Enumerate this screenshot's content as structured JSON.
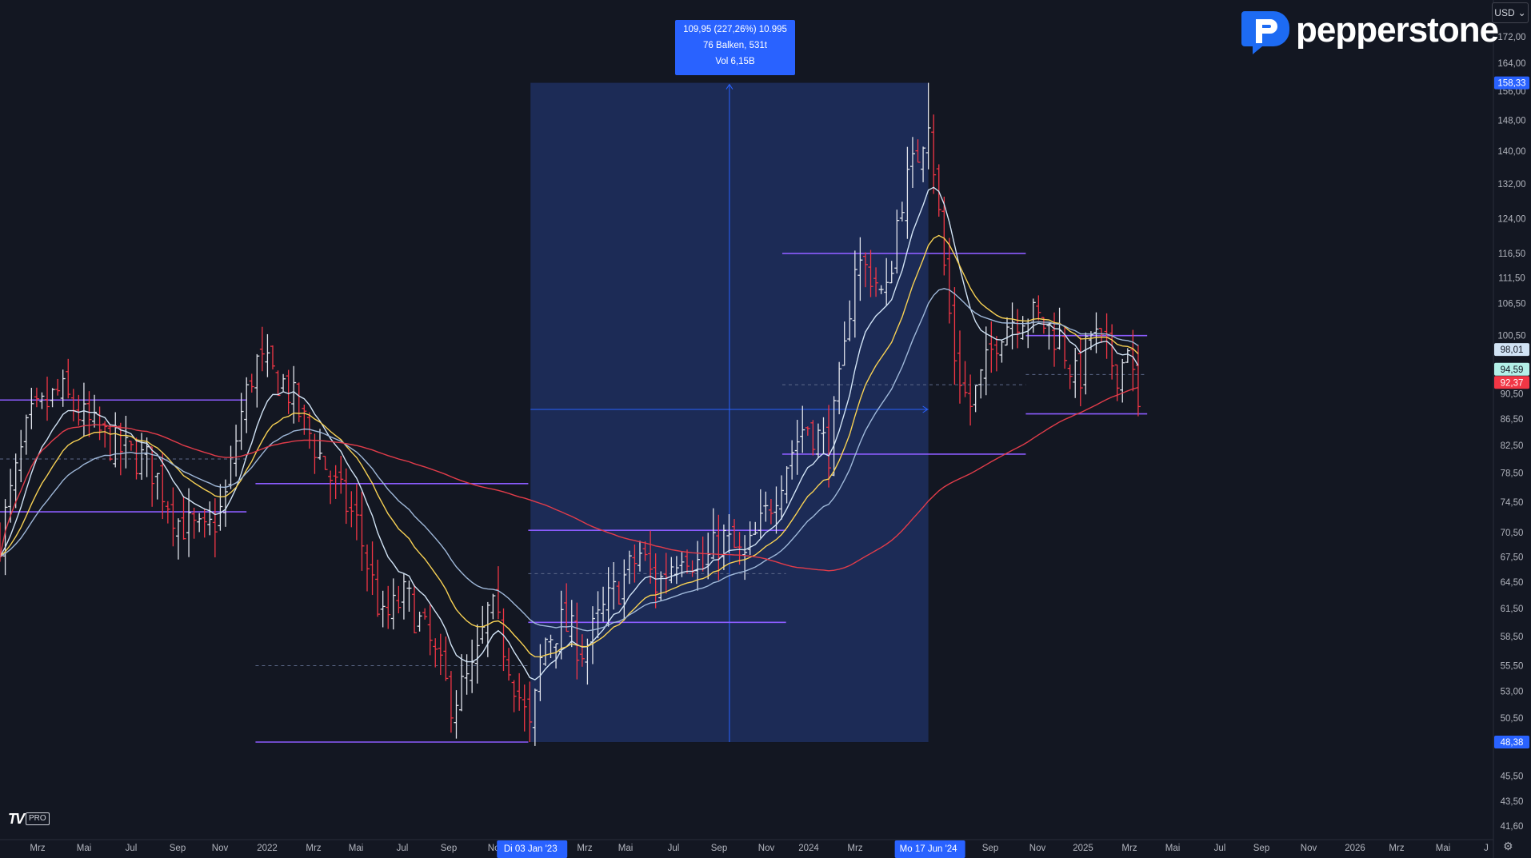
{
  "app": {
    "brand": "pepperstone",
    "currency": "USD",
    "badge_main": "TV",
    "badge_sub": "PRO"
  },
  "measure_tool": {
    "line1": "109,95 (227,26%) 10.995",
    "line2": "76 Balken, 531t",
    "line3": "Vol 6,15B",
    "start_label": "Di 03 Jan '23",
    "end_label": "Mo 17 Jun '24",
    "low": 48.38,
    "high": 158.33
  },
  "colors": {
    "background": "#131722",
    "bull": "#e0e3eb",
    "bear": "#f23645",
    "ema_fast": "#d1e3f5",
    "ema_mid": "#f7d154",
    "ema_slow_blue": "#9fb8d9",
    "sma_red": "#e23c4a",
    "level_lines": "#8c5cff",
    "measure_fill": "#1e2d5c",
    "accent": "#2962ff"
  },
  "chart_data": {
    "type": "candlestick",
    "symbol_currency": "USD",
    "y_axis": {
      "scale": "log",
      "ticks": [
        "172,00",
        "164,00",
        "156,00",
        "148,00",
        "140,00",
        "132,00",
        "124,00",
        "116,50",
        "111,50",
        "106,50",
        "100,50",
        "94,50",
        "90,50",
        "86,50",
        "82,50",
        "78,50",
        "74,50",
        "70,50",
        "67,50",
        "64,50",
        "61,50",
        "58,50",
        "55,50",
        "53,00",
        "50,50",
        "45,50",
        "43,50",
        "41,60"
      ],
      "tick_values": [
        172,
        164,
        156,
        148,
        140,
        132,
        124,
        116.5,
        111.5,
        106.5,
        100.5,
        94.5,
        90.5,
        86.5,
        82.5,
        78.5,
        74.5,
        70.5,
        67.5,
        64.5,
        61.5,
        58.5,
        55.5,
        53,
        50.5,
        45.5,
        43.5,
        41.6
      ],
      "ylim": [
        40.3,
        182
      ]
    },
    "x_axis": {
      "labels": [
        "Mrz",
        "Mai",
        "Jul",
        "Sep",
        "Nov",
        "2022",
        "Mrz",
        "Mai",
        "Jul",
        "Sep",
        "Nov",
        "Mrz",
        "Mai",
        "Jul",
        "Sep",
        "Nov",
        "2024",
        "Mrz",
        "Sep",
        "Nov",
        "2025",
        "Mrz",
        "Mai",
        "Jul",
        "Sep",
        "Nov",
        "2026",
        "Mrz",
        "Mai",
        "J"
      ],
      "start": "2021-01-25",
      "end": "2026-07-10"
    },
    "price_labels": [
      {
        "value": 158.33,
        "text": "158,33",
        "color": "#2962ff",
        "text_color": "#ffffff"
      },
      {
        "value": 98.01,
        "text": "98,01",
        "color": "#d1e3f5",
        "text_color": "#131722"
      },
      {
        "value": 94.59,
        "text": "94,59",
        "color": "#b3f0e8",
        "text_color": "#131722"
      },
      {
        "value": 92.37,
        "text": "92,37",
        "color": "#f23645",
        "text_color": "#ffffff"
      },
      {
        "value": 48.38,
        "text": "48,38",
        "color": "#2962ff",
        "text_color": "#ffffff"
      }
    ],
    "anchors": [
      [
        "2021-01-25",
        70
      ],
      [
        "2021-03-05",
        86
      ],
      [
        "2021-04-15",
        91
      ],
      [
        "2021-05-20",
        86
      ],
      [
        "2021-07-01",
        82
      ],
      [
        "2021-08-12",
        80
      ],
      [
        "2021-09-20",
        72
      ],
      [
        "2021-10-25",
        70
      ],
      [
        "2021-11-20",
        74
      ],
      [
        "2021-12-10",
        86
      ],
      [
        "2022-01-01",
        96
      ],
      [
        "2022-02-10",
        92
      ],
      [
        "2022-03-15",
        84
      ],
      [
        "2022-04-20",
        76
      ],
      [
        "2022-05-15",
        72
      ],
      [
        "2022-06-20",
        60
      ],
      [
        "2022-07-20",
        63
      ],
      [
        "2022-08-20",
        58
      ],
      [
        "2022-09-20",
        52
      ],
      [
        "2022-10-20",
        55
      ],
      [
        "2022-11-10",
        62
      ],
      [
        "2022-12-05",
        56
      ],
      [
        "2023-01-03",
        49
      ],
      [
        "2023-01-20",
        58
      ],
      [
        "2023-02-15",
        60
      ],
      [
        "2023-03-15",
        57
      ],
      [
        "2023-04-15",
        62
      ],
      [
        "2023-05-30",
        68
      ],
      [
        "2023-06-20",
        64
      ],
      [
        "2023-07-25",
        69
      ],
      [
        "2023-08-20",
        66
      ],
      [
        "2023-09-15",
        70
      ],
      [
        "2023-10-15",
        67
      ],
      [
        "2023-11-10",
        72
      ],
      [
        "2023-12-10",
        80
      ],
      [
        "2024-01-05",
        86
      ],
      [
        "2024-02-05",
        82
      ],
      [
        "2024-02-25",
        96
      ],
      [
        "2024-03-10",
        115
      ],
      [
        "2024-04-05",
        112
      ],
      [
        "2024-04-20",
        106
      ],
      [
        "2024-05-10",
        128
      ],
      [
        "2024-06-01",
        138
      ],
      [
        "2024-06-17",
        150
      ],
      [
        "2024-07-05",
        118
      ],
      [
        "2024-07-20",
        98
      ],
      [
        "2024-08-10",
        88
      ],
      [
        "2024-08-30",
        94
      ],
      [
        "2024-09-20",
        102
      ],
      [
        "2024-10-20",
        105
      ],
      [
        "2024-11-15",
        103
      ],
      [
        "2024-12-10",
        100
      ],
      [
        "2025-01-02",
        92
      ],
      [
        "2025-01-20",
        101
      ],
      [
        "2025-02-10",
        97
      ],
      [
        "2025-02-28",
        94
      ],
      [
        "2025-03-10",
        100
      ],
      [
        "2025-03-22",
        88
      ],
      [
        "2025-03-29",
        86
      ]
    ],
    "moving_averages": [
      {
        "name": "EMA fast",
        "color": "#d1e3f5",
        "length": 10
      },
      {
        "name": "EMA mid",
        "color": "#f7d154",
        "length": 20
      },
      {
        "name": "EMA slow",
        "color": "#9fb8d9",
        "length": 34
      },
      {
        "name": "SMA",
        "color": "#e23c4a",
        "length": 100
      }
    ],
    "horizontal_levels": [
      {
        "from": "2021-01-25",
        "to": "2021-12-20",
        "value": 89.5
      },
      {
        "from": "2021-01-25",
        "to": "2021-12-20",
        "value": 73.2
      },
      {
        "from": "2022-01-01",
        "to": "2022-12-31",
        "value": 77.0
      },
      {
        "from": "2022-01-01",
        "to": "2022-12-31",
        "value": 48.38
      },
      {
        "from": "2022-12-31",
        "to": "2023-12-10",
        "value": 70.8
      },
      {
        "from": "2022-12-31",
        "to": "2023-12-10",
        "value": 60.0
      },
      {
        "from": "2023-12-05",
        "to": "2024-10-25",
        "value": 116.5
      },
      {
        "from": "2023-12-05",
        "to": "2024-10-25",
        "value": 81.2
      },
      {
        "from": "2024-10-25",
        "to": "2025-04-05",
        "value": 100.5
      },
      {
        "from": "2024-10-25",
        "to": "2025-04-05",
        "value": 87.3
      }
    ]
  }
}
